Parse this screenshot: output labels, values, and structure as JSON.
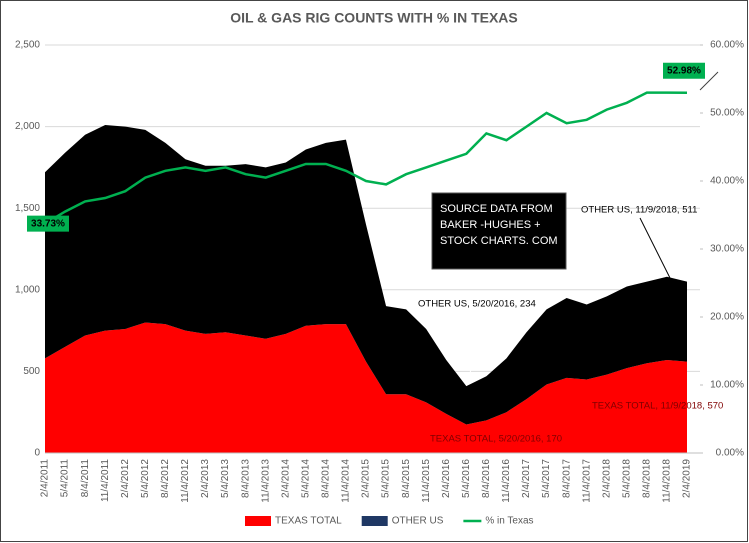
{
  "chart_data": {
    "type": "stacked_area_line",
    "title": "OIL & GAS RIG COUNTS WITH % IN TEXAS",
    "categories": [
      "2/4/2011",
      "5/4/2011",
      "8/4/2011",
      "11/4/2011",
      "2/4/2012",
      "5/4/2012",
      "8/4/2012",
      "11/4/2012",
      "2/4/2013",
      "5/4/2013",
      "8/4/2013",
      "11/4/2013",
      "2/4/2014",
      "5/4/2014",
      "8/4/2014",
      "11/4/2014",
      "2/4/2015",
      "5/4/2015",
      "8/4/2015",
      "11/4/2015",
      "2/4/2016",
      "5/4/2016",
      "8/4/2016",
      "11/4/2016",
      "2/4/2017",
      "5/4/2017",
      "8/4/2017",
      "11/4/2017",
      "2/4/2018",
      "5/4/2018",
      "8/4/2018",
      "11/4/2018",
      "2/4/2019"
    ],
    "series": [
      {
        "name": "TEXAS TOTAL",
        "color": "#ff0000",
        "values": [
          580,
          650,
          720,
          750,
          760,
          800,
          790,
          750,
          730,
          740,
          720,
          700,
          730,
          780,
          790,
          790,
          560,
          360,
          360,
          310,
          240,
          175,
          200,
          250,
          330,
          420,
          460,
          450,
          480,
          520,
          550,
          570,
          560
        ]
      },
      {
        "name": "OTHER US",
        "color": "#000000",
        "legend_color": "#1f3864",
        "values": [
          1140,
          1190,
          1230,
          1260,
          1240,
          1180,
          1110,
          1050,
          1030,
          1020,
          1050,
          1050,
          1050,
          1080,
          1110,
          1130,
          840,
          540,
          520,
          450,
          330,
          235,
          270,
          330,
          410,
          460,
          490,
          460,
          480,
          500,
          500,
          510,
          490
        ]
      },
      {
        "name": "% in Texas",
        "color": "#00b050",
        "axis": "y2",
        "values": [
          33.73,
          35.5,
          37,
          37.5,
          38.5,
          40.5,
          41.5,
          42,
          41.5,
          42,
          41,
          40.5,
          41.5,
          42.5,
          42.5,
          41.5,
          40,
          39.5,
          41,
          42,
          43,
          44,
          47,
          46,
          48,
          50,
          48.5,
          49,
          50.5,
          51.5,
          53,
          53,
          52.98
        ],
        "value_labels": [
          "33.73%",
          null,
          null,
          null,
          null,
          null,
          null,
          null,
          null,
          null,
          null,
          null,
          null,
          null,
          null,
          null,
          null,
          null,
          null,
          null,
          null,
          null,
          null,
          null,
          null,
          null,
          null,
          null,
          null,
          null,
          null,
          null,
          "52.98%"
        ]
      }
    ],
    "ylim": [
      0,
      2500
    ],
    "yticks": [
      0,
      500,
      {
        "value": 1000,
        "label": "1,000"
      },
      {
        "value": 1500,
        "label": "1,500"
      },
      {
        "value": 2000,
        "label": "2,000"
      },
      {
        "value": 2500,
        "label": "2,500"
      }
    ],
    "y2lim": [
      0,
      60
    ],
    "y2ticks": [
      {
        "value": 0,
        "label": "0.00%"
      },
      {
        "value": 10,
        "label": "10.00%"
      },
      {
        "value": 20,
        "label": "20.00%"
      },
      {
        "value": 30,
        "label": "30.00%"
      },
      {
        "value": 40,
        "label": "40.00%"
      },
      {
        "value": 50,
        "label": "50.00%"
      },
      {
        "value": 60,
        "label": "60.00%"
      }
    ],
    "grid": true,
    "legend": "bottom",
    "annotations": [
      "OTHER US, 5/20/2016, 234",
      "TEXAS TOTAL, 5/20/2016, 170",
      "OTHER US, 11/9/2018, 511",
      "TEXAS TOTAL, 11/9/2018, 570"
    ],
    "source_box": [
      "SOURCE DATA FROM",
      "BAKER -HUGHES +",
      "STOCK CHARTS. COM"
    ]
  }
}
